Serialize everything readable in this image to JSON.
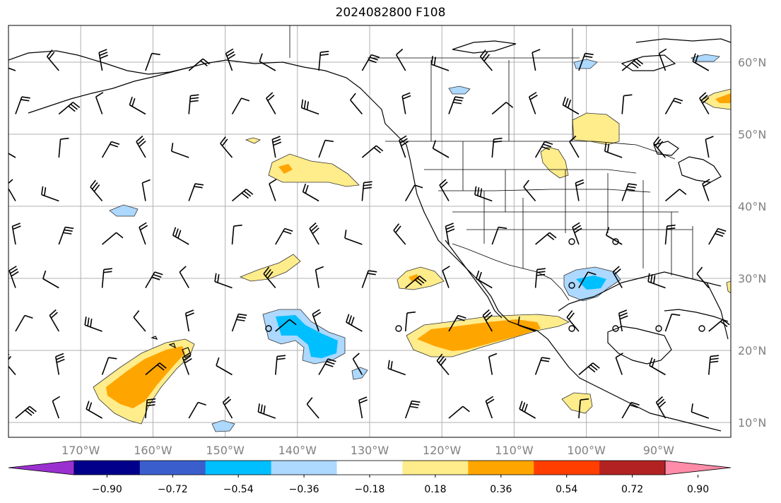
{
  "title": "2024082800 F108",
  "map": {
    "lat_labels": [
      "60°N",
      "50°N",
      "40°N",
      "30°N",
      "20°N",
      "10°N"
    ],
    "lon_labels": [
      "170°W",
      "160°W",
      "150°W",
      "140°W",
      "130°W",
      "120°W",
      "110°W",
      "100°W",
      "90°W"
    ],
    "lat_ticks": [
      60,
      50,
      40,
      30,
      20,
      10
    ],
    "lon_ticks": [
      -170,
      -160,
      -150,
      -140,
      -130,
      -120,
      -110,
      -100,
      -90
    ],
    "extent": {
      "lon_min": -180,
      "lon_max": -80,
      "lat_min": 8,
      "lat_max": 65
    },
    "land_color": "#ffffff",
    "coast_color": "#000000",
    "grid_color": "#b0b0b0"
  },
  "colorbar": {
    "labels": [
      "−0.90",
      "−0.72",
      "−0.54",
      "−0.36",
      "−0.18",
      "0.18",
      "0.36",
      "0.54",
      "0.72",
      "0.90"
    ],
    "colors": [
      "#9b30d0",
      "#00008b",
      "#3a5fcd",
      "#00bfff",
      "#add8ff",
      "#ffffff",
      "#ffec8b",
      "#ffa500",
      "#ff3e00",
      "#b22222",
      "#ff8ca8"
    ]
  },
  "features": {
    "calm_markers": [
      "calm-circle"
    ],
    "barb_icon": "wind-barb-icon"
  }
}
